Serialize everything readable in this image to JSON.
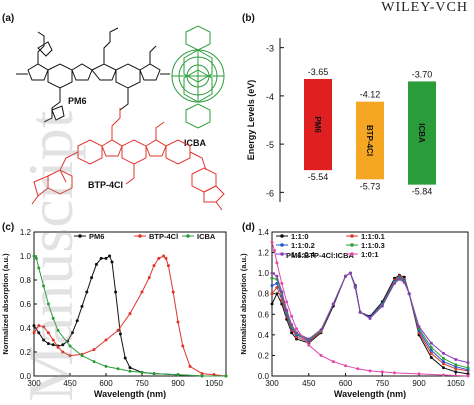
{
  "header": {
    "text": "WILEY-VCH"
  },
  "panels": {
    "a": {
      "letter": "(a)",
      "labels": {
        "pm6": "PM6",
        "icba": "ICBA",
        "btp": "BTP-4Cl"
      },
      "colors": {
        "pm6": "#111111",
        "icba": "#2a9d3a",
        "btp": "#e0342c"
      }
    },
    "b": {
      "letter": "(b)"
    },
    "c": {
      "letter": "(c)"
    },
    "d": {
      "letter": "(d)"
    }
  },
  "watermark": "Manuscript",
  "chart_data": [
    {
      "id": "energy-levels",
      "type": "bar",
      "ylabel": "Energy Levels (eV)",
      "ylim": [
        -6.2,
        -2.8
      ],
      "yticks": [
        -3,
        -4,
        -5,
        -6
      ],
      "bars": [
        {
          "name": "PM6",
          "top": -3.65,
          "bottom": -5.54,
          "top_label": "-3.65",
          "bottom_label": "-5.54",
          "color": "#e02020"
        },
        {
          "name": "BTP-4Cl",
          "top": -4.12,
          "bottom": -5.73,
          "top_label": "-4.12",
          "bottom_label": "-5.73",
          "color": "#f5a623"
        },
        {
          "name": "ICBA",
          "top": -3.7,
          "bottom": -5.84,
          "top_label": "-3.70",
          "bottom_label": "-5.84",
          "color": "#2a9d3a"
        }
      ]
    },
    {
      "id": "absorption-c",
      "type": "line",
      "xlabel": "Wavelength (nm)",
      "ylabel": "Normalized absorption (a.u.)",
      "xlim": [
        300,
        1100
      ],
      "ylim": [
        0.0,
        1.2
      ],
      "xticks": [
        300,
        450,
        600,
        750,
        900,
        1050
      ],
      "yticks": [
        0.0,
        0.2,
        0.4,
        0.6,
        0.8,
        1.0,
        1.2
      ],
      "legend": "top",
      "series": [
        {
          "name": "PM6",
          "color": "#111111",
          "x": [
            300,
            320,
            340,
            360,
            380,
            400,
            420,
            440,
            460,
            480,
            500,
            520,
            540,
            560,
            580,
            600,
            615,
            625,
            640,
            660,
            680,
            700,
            750,
            800,
            900,
            1000,
            1100
          ],
          "y": [
            0.42,
            0.36,
            0.3,
            0.27,
            0.26,
            0.25,
            0.26,
            0.29,
            0.36,
            0.46,
            0.58,
            0.7,
            0.82,
            0.93,
            0.98,
            0.98,
            1.0,
            0.95,
            0.7,
            0.35,
            0.15,
            0.07,
            0.03,
            0.02,
            0.01,
            0.0,
            0.0
          ]
        },
        {
          "name": "BTP-4Cl",
          "color": "#e0342c",
          "x": [
            300,
            320,
            340,
            360,
            380,
            400,
            420,
            450,
            500,
            550,
            600,
            650,
            700,
            750,
            780,
            800,
            820,
            840,
            850,
            860,
            880,
            900,
            920,
            950,
            1000,
            1050,
            1100
          ],
          "y": [
            0.36,
            0.42,
            0.41,
            0.36,
            0.3,
            0.24,
            0.2,
            0.17,
            0.18,
            0.22,
            0.3,
            0.38,
            0.52,
            0.7,
            0.82,
            0.92,
            0.98,
            1.0,
            0.98,
            0.92,
            0.7,
            0.45,
            0.25,
            0.08,
            0.02,
            0.01,
            0.0
          ]
        },
        {
          "name": "ICBA",
          "color": "#2a9d3a",
          "x": [
            300,
            310,
            320,
            340,
            360,
            380,
            400,
            450,
            500,
            550,
            600,
            650,
            700,
            750,
            800,
            900,
            1000,
            1100
          ],
          "y": [
            1.0,
            0.98,
            0.9,
            0.75,
            0.6,
            0.48,
            0.38,
            0.25,
            0.17,
            0.12,
            0.08,
            0.06,
            0.04,
            0.03,
            0.02,
            0.01,
            0.0,
            0.0
          ]
        }
      ]
    },
    {
      "id": "absorption-d",
      "type": "line",
      "title": "PM6:BTP-4Cl:ICBA",
      "xlabel": "Wavelength (nm)",
      "ylabel": "Normalized absorption (a.u.)",
      "xlim": [
        300,
        1100
      ],
      "ylim": [
        0.0,
        1.4
      ],
      "xticks": [
        300,
        450,
        600,
        750,
        900,
        1050
      ],
      "yticks": [
        0.0,
        0.2,
        0.4,
        0.6,
        0.8,
        1.0,
        1.2,
        1.4
      ],
      "legend": "top",
      "series": [
        {
          "name": "1:1:0",
          "color": "#111111",
          "x": [
            300,
            320,
            340,
            360,
            380,
            400,
            450,
            500,
            550,
            600,
            620,
            640,
            660,
            700,
            750,
            800,
            820,
            840,
            860,
            900,
            950,
            1000,
            1050,
            1100
          ],
          "y": [
            0.7,
            0.8,
            0.7,
            0.55,
            0.42,
            0.36,
            0.32,
            0.42,
            0.68,
            0.97,
            1.0,
            0.88,
            0.62,
            0.58,
            0.72,
            0.95,
            0.98,
            0.96,
            0.8,
            0.4,
            0.18,
            0.08,
            0.04,
            0.02
          ]
        },
        {
          "name": "1:1:0.1",
          "color": "#e0342c",
          "x": [
            300,
            320,
            340,
            360,
            380,
            400,
            450,
            500,
            550,
            600,
            620,
            640,
            660,
            700,
            750,
            800,
            820,
            840,
            860,
            900,
            950,
            1000,
            1050,
            1100
          ],
          "y": [
            0.8,
            0.86,
            0.74,
            0.58,
            0.45,
            0.38,
            0.33,
            0.43,
            0.7,
            0.97,
            1.0,
            0.87,
            0.62,
            0.57,
            0.7,
            0.93,
            0.97,
            0.94,
            0.8,
            0.42,
            0.22,
            0.12,
            0.07,
            0.05
          ]
        },
        {
          "name": "1:1:0.2",
          "color": "#2255cc",
          "x": [
            300,
            320,
            340,
            360,
            380,
            400,
            450,
            500,
            550,
            600,
            620,
            640,
            660,
            700,
            750,
            800,
            820,
            840,
            860,
            900,
            950,
            1000,
            1050,
            1100
          ],
          "y": [
            0.88,
            0.9,
            0.78,
            0.6,
            0.47,
            0.4,
            0.34,
            0.44,
            0.7,
            0.97,
            1.0,
            0.87,
            0.62,
            0.57,
            0.7,
            0.92,
            0.96,
            0.93,
            0.8,
            0.44,
            0.25,
            0.14,
            0.09,
            0.06
          ]
        },
        {
          "name": "1:1:0.3",
          "color": "#2a9d3a",
          "x": [
            300,
            320,
            340,
            360,
            380,
            400,
            450,
            500,
            550,
            600,
            620,
            640,
            660,
            700,
            750,
            800,
            820,
            840,
            860,
            900,
            950,
            1000,
            1050,
            1100
          ],
          "y": [
            0.95,
            0.94,
            0.8,
            0.62,
            0.48,
            0.41,
            0.35,
            0.44,
            0.7,
            0.97,
            1.0,
            0.86,
            0.62,
            0.56,
            0.69,
            0.91,
            0.95,
            0.92,
            0.8,
            0.46,
            0.28,
            0.17,
            0.11,
            0.08
          ]
        },
        {
          "name": "1:1:0.4",
          "color": "#8a3fb8",
          "x": [
            300,
            320,
            340,
            360,
            380,
            400,
            450,
            500,
            550,
            600,
            620,
            640,
            660,
            700,
            750,
            800,
            820,
            840,
            860,
            900,
            950,
            1000,
            1050,
            1100
          ],
          "y": [
            1.0,
            0.97,
            0.82,
            0.64,
            0.5,
            0.42,
            0.36,
            0.45,
            0.7,
            0.97,
            1.0,
            0.86,
            0.62,
            0.56,
            0.68,
            0.9,
            0.94,
            0.91,
            0.8,
            0.48,
            0.32,
            0.22,
            0.16,
            0.13
          ]
        },
        {
          "name": "1:0:1",
          "color": "#e04aa8",
          "x": [
            300,
            310,
            320,
            340,
            360,
            380,
            400,
            450,
            500,
            550,
            600,
            650,
            700,
            750,
            800,
            900,
            1000,
            1100
          ],
          "y": [
            1.3,
            1.22,
            1.1,
            0.9,
            0.72,
            0.58,
            0.46,
            0.3,
            0.2,
            0.14,
            0.1,
            0.07,
            0.05,
            0.04,
            0.03,
            0.02,
            0.01,
            0.0
          ]
        }
      ]
    }
  ]
}
